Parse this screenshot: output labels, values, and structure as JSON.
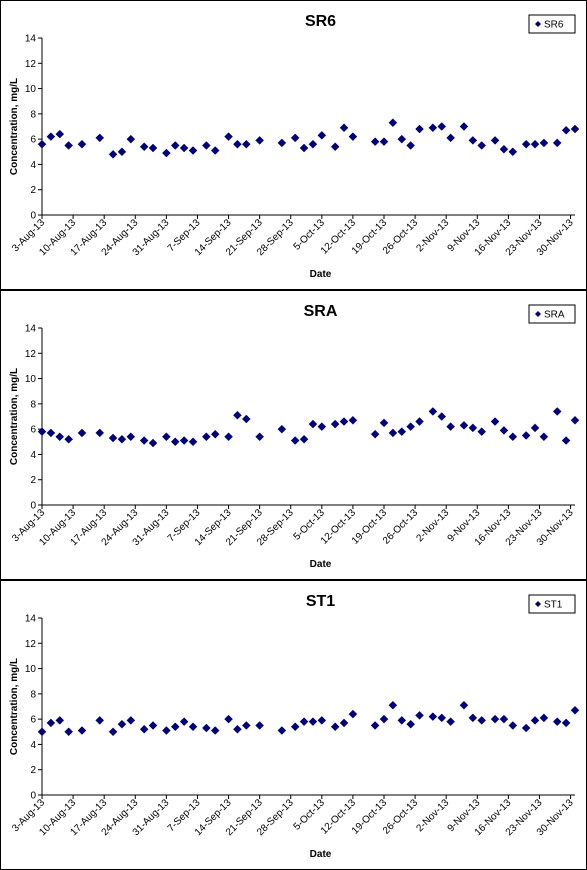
{
  "chart_data": [
    {
      "type": "scatter",
      "title": "SR6",
      "xlabel": "Date",
      "ylabel": "Concentration, mg/L",
      "ylim": [
        0,
        14
      ],
      "yticks": [
        0,
        2,
        4,
        6,
        8,
        10,
        12,
        14
      ],
      "xlim": [
        "2013-08-03",
        "2013-12-01"
      ],
      "x_tick_labels": [
        "3-Aug-13",
        "10-Aug-13",
        "17-Aug-13",
        "24-Aug-13",
        "31-Aug-13",
        "7-Sep-13",
        "14-Sep-13",
        "21-Sep-13",
        "28-Sep-13",
        "5-Oct-13",
        "12-Oct-13",
        "19-Oct-13",
        "26-Oct-13",
        "2-Nov-13",
        "9-Nov-13",
        "16-Nov-13",
        "23-Nov-13",
        "30-Nov-13"
      ],
      "x_tick_dates": [
        "2013-08-03",
        "2013-08-10",
        "2013-08-17",
        "2013-08-24",
        "2013-08-31",
        "2013-09-07",
        "2013-09-14",
        "2013-09-21",
        "2013-09-28",
        "2013-10-05",
        "2013-10-12",
        "2013-10-19",
        "2013-10-26",
        "2013-11-02",
        "2013-11-09",
        "2013-11-16",
        "2013-11-23",
        "2013-11-30"
      ],
      "grid": false,
      "legend_position": "top-right",
      "marker_color": "#000080",
      "series": [
        {
          "name": "SR6",
          "points": [
            {
              "x": "2013-08-03",
              "y": 5.6
            },
            {
              "x": "2013-08-05",
              "y": 6.2
            },
            {
              "x": "2013-08-07",
              "y": 6.4
            },
            {
              "x": "2013-08-09",
              "y": 5.5
            },
            {
              "x": "2013-08-12",
              "y": 5.6
            },
            {
              "x": "2013-08-16",
              "y": 6.1
            },
            {
              "x": "2013-08-19",
              "y": 4.8
            },
            {
              "x": "2013-08-21",
              "y": 5.0
            },
            {
              "x": "2013-08-23",
              "y": 6.0
            },
            {
              "x": "2013-08-26",
              "y": 5.4
            },
            {
              "x": "2013-08-28",
              "y": 5.3
            },
            {
              "x": "2013-08-31",
              "y": 4.9
            },
            {
              "x": "2013-09-02",
              "y": 5.5
            },
            {
              "x": "2013-09-04",
              "y": 5.3
            },
            {
              "x": "2013-09-06",
              "y": 5.1
            },
            {
              "x": "2013-09-09",
              "y": 5.5
            },
            {
              "x": "2013-09-11",
              "y": 5.1
            },
            {
              "x": "2013-09-14",
              "y": 6.2
            },
            {
              "x": "2013-09-16",
              "y": 5.6
            },
            {
              "x": "2013-09-18",
              "y": 5.6
            },
            {
              "x": "2013-09-21",
              "y": 5.9
            },
            {
              "x": "2013-09-26",
              "y": 5.7
            },
            {
              "x": "2013-09-29",
              "y": 6.1
            },
            {
              "x": "2013-10-01",
              "y": 5.3
            },
            {
              "x": "2013-10-03",
              "y": 5.6
            },
            {
              "x": "2013-10-05",
              "y": 6.3
            },
            {
              "x": "2013-10-08",
              "y": 5.4
            },
            {
              "x": "2013-10-10",
              "y": 6.9
            },
            {
              "x": "2013-10-12",
              "y": 6.2
            },
            {
              "x": "2013-10-17",
              "y": 5.8
            },
            {
              "x": "2013-10-19",
              "y": 5.8
            },
            {
              "x": "2013-10-21",
              "y": 7.3
            },
            {
              "x": "2013-10-23",
              "y": 6.0
            },
            {
              "x": "2013-10-25",
              "y": 5.5
            },
            {
              "x": "2013-10-27",
              "y": 6.8
            },
            {
              "x": "2013-10-30",
              "y": 6.9
            },
            {
              "x": "2013-11-01",
              "y": 7.0
            },
            {
              "x": "2013-11-03",
              "y": 6.1
            },
            {
              "x": "2013-11-06",
              "y": 7.0
            },
            {
              "x": "2013-11-08",
              "y": 5.9
            },
            {
              "x": "2013-11-10",
              "y": 5.5
            },
            {
              "x": "2013-11-13",
              "y": 5.9
            },
            {
              "x": "2013-11-15",
              "y": 5.2
            },
            {
              "x": "2013-11-17",
              "y": 5.0
            },
            {
              "x": "2013-11-20",
              "y": 5.6
            },
            {
              "x": "2013-11-22",
              "y": 5.6
            },
            {
              "x": "2013-11-24",
              "y": 5.7
            },
            {
              "x": "2013-11-27",
              "y": 5.7
            },
            {
              "x": "2013-11-29",
              "y": 6.7
            },
            {
              "x": "2013-12-01",
              "y": 6.8
            }
          ]
        }
      ]
    },
    {
      "type": "scatter",
      "title": "SRA",
      "xlabel": "Date",
      "ylabel": "Concentration, mg/L",
      "ylim": [
        0,
        14
      ],
      "yticks": [
        0,
        2,
        4,
        6,
        8,
        10,
        12,
        14
      ],
      "xlim": [
        "2013-08-03",
        "2013-12-01"
      ],
      "x_tick_labels": [
        "3-Aug-13",
        "10-Aug-13",
        "17-Aug-13",
        "24-Aug-13",
        "31-Aug-13",
        "7-Sep-13",
        "14-Sep-13",
        "21-Sep-13",
        "28-Sep-13",
        "5-Oct-13",
        "12-Oct-13",
        "19-Oct-13",
        "26-Oct-13",
        "2-Nov-13",
        "9-Nov-13",
        "16-Nov-13",
        "23-Nov-13",
        "30-Nov-13"
      ],
      "x_tick_dates": [
        "2013-08-03",
        "2013-08-10",
        "2013-08-17",
        "2013-08-24",
        "2013-08-31",
        "2013-09-07",
        "2013-09-14",
        "2013-09-21",
        "2013-09-28",
        "2013-10-05",
        "2013-10-12",
        "2013-10-19",
        "2013-10-26",
        "2013-11-02",
        "2013-11-09",
        "2013-11-16",
        "2013-11-23",
        "2013-11-30"
      ],
      "grid": false,
      "legend_position": "top-right",
      "marker_color": "#000080",
      "series": [
        {
          "name": "SRA",
          "points": [
            {
              "x": "2013-08-03",
              "y": 5.8
            },
            {
              "x": "2013-08-05",
              "y": 5.7
            },
            {
              "x": "2013-08-07",
              "y": 5.4
            },
            {
              "x": "2013-08-09",
              "y": 5.2
            },
            {
              "x": "2013-08-12",
              "y": 5.7
            },
            {
              "x": "2013-08-16",
              "y": 5.7
            },
            {
              "x": "2013-08-19",
              "y": 5.3
            },
            {
              "x": "2013-08-21",
              "y": 5.2
            },
            {
              "x": "2013-08-23",
              "y": 5.4
            },
            {
              "x": "2013-08-26",
              "y": 5.1
            },
            {
              "x": "2013-08-28",
              "y": 4.9
            },
            {
              "x": "2013-08-31",
              "y": 5.4
            },
            {
              "x": "2013-09-02",
              "y": 5.0
            },
            {
              "x": "2013-09-04",
              "y": 5.1
            },
            {
              "x": "2013-09-06",
              "y": 5.0
            },
            {
              "x": "2013-09-09",
              "y": 5.4
            },
            {
              "x": "2013-09-11",
              "y": 5.6
            },
            {
              "x": "2013-09-14",
              "y": 5.4
            },
            {
              "x": "2013-09-16",
              "y": 7.1
            },
            {
              "x": "2013-09-18",
              "y": 6.8
            },
            {
              "x": "2013-09-21",
              "y": 5.4
            },
            {
              "x": "2013-09-26",
              "y": 6.0
            },
            {
              "x": "2013-09-29",
              "y": 5.1
            },
            {
              "x": "2013-10-01",
              "y": 5.2
            },
            {
              "x": "2013-10-03",
              "y": 6.4
            },
            {
              "x": "2013-10-05",
              "y": 6.2
            },
            {
              "x": "2013-10-08",
              "y": 6.4
            },
            {
              "x": "2013-10-10",
              "y": 6.6
            },
            {
              "x": "2013-10-12",
              "y": 6.7
            },
            {
              "x": "2013-10-17",
              "y": 5.6
            },
            {
              "x": "2013-10-19",
              "y": 6.5
            },
            {
              "x": "2013-10-21",
              "y": 5.7
            },
            {
              "x": "2013-10-23",
              "y": 5.8
            },
            {
              "x": "2013-10-25",
              "y": 6.2
            },
            {
              "x": "2013-10-27",
              "y": 6.6
            },
            {
              "x": "2013-10-30",
              "y": 7.4
            },
            {
              "x": "2013-11-01",
              "y": 7.0
            },
            {
              "x": "2013-11-03",
              "y": 6.2
            },
            {
              "x": "2013-11-06",
              "y": 6.3
            },
            {
              "x": "2013-11-08",
              "y": 6.1
            },
            {
              "x": "2013-11-10",
              "y": 5.8
            },
            {
              "x": "2013-11-13",
              "y": 6.6
            },
            {
              "x": "2013-11-15",
              "y": 5.9
            },
            {
              "x": "2013-11-17",
              "y": 5.4
            },
            {
              "x": "2013-11-20",
              "y": 5.5
            },
            {
              "x": "2013-11-22",
              "y": 6.1
            },
            {
              "x": "2013-11-24",
              "y": 5.4
            },
            {
              "x": "2013-11-27",
              "y": 7.4
            },
            {
              "x": "2013-11-29",
              "y": 5.1
            },
            {
              "x": "2013-12-01",
              "y": 6.7
            }
          ]
        }
      ]
    },
    {
      "type": "scatter",
      "title": "ST1",
      "xlabel": "Date",
      "ylabel": "Concentration, mg/L",
      "ylim": [
        0,
        14
      ],
      "yticks": [
        0,
        2,
        4,
        6,
        8,
        10,
        12,
        14
      ],
      "xlim": [
        "2013-08-03",
        "2013-12-01"
      ],
      "x_tick_labels": [
        "3-Aug-13",
        "10-Aug-13",
        "17-Aug-13",
        "24-Aug-13",
        "31-Aug-13",
        "7-Sep-13",
        "14-Sep-13",
        "21-Sep-13",
        "28-Sep-13",
        "5-Oct-13",
        "12-Oct-13",
        "19-Oct-13",
        "26-Oct-13",
        "2-Nov-13",
        "9-Nov-13",
        "16-Nov-13",
        "23-Nov-13",
        "30-Nov-13"
      ],
      "x_tick_dates": [
        "2013-08-03",
        "2013-08-10",
        "2013-08-17",
        "2013-08-24",
        "2013-08-31",
        "2013-09-07",
        "2013-09-14",
        "2013-09-21",
        "2013-09-28",
        "2013-10-05",
        "2013-10-12",
        "2013-10-19",
        "2013-10-26",
        "2013-11-02",
        "2013-11-09",
        "2013-11-16",
        "2013-11-23",
        "2013-11-30"
      ],
      "grid": false,
      "legend_position": "top-right",
      "marker_color": "#000080",
      "series": [
        {
          "name": "ST1",
          "points": [
            {
              "x": "2013-08-03",
              "y": 5.0
            },
            {
              "x": "2013-08-05",
              "y": 5.7
            },
            {
              "x": "2013-08-07",
              "y": 5.9
            },
            {
              "x": "2013-08-09",
              "y": 5.0
            },
            {
              "x": "2013-08-12",
              "y": 5.1
            },
            {
              "x": "2013-08-16",
              "y": 5.9
            },
            {
              "x": "2013-08-19",
              "y": 5.0
            },
            {
              "x": "2013-08-21",
              "y": 5.6
            },
            {
              "x": "2013-08-23",
              "y": 5.9
            },
            {
              "x": "2013-08-26",
              "y": 5.2
            },
            {
              "x": "2013-08-28",
              "y": 5.5
            },
            {
              "x": "2013-08-31",
              "y": 5.1
            },
            {
              "x": "2013-09-02",
              "y": 5.4
            },
            {
              "x": "2013-09-04",
              "y": 5.8
            },
            {
              "x": "2013-09-06",
              "y": 5.4
            },
            {
              "x": "2013-09-09",
              "y": 5.3
            },
            {
              "x": "2013-09-11",
              "y": 5.1
            },
            {
              "x": "2013-09-14",
              "y": 6.0
            },
            {
              "x": "2013-09-16",
              "y": 5.2
            },
            {
              "x": "2013-09-18",
              "y": 5.5
            },
            {
              "x": "2013-09-21",
              "y": 5.5
            },
            {
              "x": "2013-09-26",
              "y": 5.1
            },
            {
              "x": "2013-09-29",
              "y": 5.4
            },
            {
              "x": "2013-10-01",
              "y": 5.8
            },
            {
              "x": "2013-10-03",
              "y": 5.8
            },
            {
              "x": "2013-10-05",
              "y": 5.9
            },
            {
              "x": "2013-10-08",
              "y": 5.4
            },
            {
              "x": "2013-10-10",
              "y": 5.7
            },
            {
              "x": "2013-10-12",
              "y": 6.4
            },
            {
              "x": "2013-10-17",
              "y": 5.5
            },
            {
              "x": "2013-10-19",
              "y": 6.0
            },
            {
              "x": "2013-10-21",
              "y": 7.1
            },
            {
              "x": "2013-10-23",
              "y": 5.9
            },
            {
              "x": "2013-10-25",
              "y": 5.6
            },
            {
              "x": "2013-10-27",
              "y": 6.3
            },
            {
              "x": "2013-10-30",
              "y": 6.2
            },
            {
              "x": "2013-11-01",
              "y": 6.1
            },
            {
              "x": "2013-11-03",
              "y": 5.8
            },
            {
              "x": "2013-11-06",
              "y": 7.1
            },
            {
              "x": "2013-11-08",
              "y": 6.1
            },
            {
              "x": "2013-11-10",
              "y": 5.9
            },
            {
              "x": "2013-11-13",
              "y": 6.0
            },
            {
              "x": "2013-11-15",
              "y": 6.0
            },
            {
              "x": "2013-11-17",
              "y": 5.5
            },
            {
              "x": "2013-11-20",
              "y": 5.3
            },
            {
              "x": "2013-11-22",
              "y": 5.9
            },
            {
              "x": "2013-11-24",
              "y": 6.1
            },
            {
              "x": "2013-11-27",
              "y": 5.8
            },
            {
              "x": "2013-11-29",
              "y": 5.7
            },
            {
              "x": "2013-12-01",
              "y": 6.7
            }
          ]
        }
      ]
    }
  ]
}
